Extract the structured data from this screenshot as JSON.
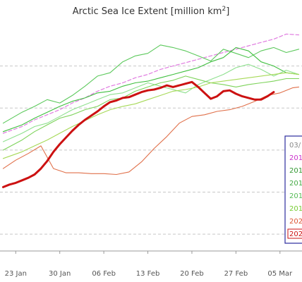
{
  "chart_data": {
    "type": "line",
    "title": "Arctic Sea Ice Extent [million km²]",
    "title_main": "Arctic Sea Ice Extent [million km",
    "title_sup": "2",
    "title_end": "]",
    "xlabel": "",
    "ylabel": "",
    "x_ticks": [
      "23 Jan",
      "30 Jan",
      "06 Feb",
      "13 Feb",
      "20 Feb",
      "27 Feb",
      "05 Mar"
    ],
    "x_tick_days": [
      -1,
      6,
      13,
      20,
      27,
      34,
      41
    ],
    "xlim": [
      -3.5,
      44.5
    ],
    "ylim": [
      12.3,
      15.0
    ],
    "yticks": [
      12.5,
      13.0,
      13.5,
      14.0,
      14.5
    ],
    "grid": true,
    "legend": {
      "position": "right",
      "entries": [
        {
          "label": "03/",
          "color": "#888888"
        },
        {
          "label": "201",
          "color": "#cc33cc"
        },
        {
          "label": "201",
          "color": "#339933"
        },
        {
          "label": "201",
          "color": "#44aa44"
        },
        {
          "label": "201",
          "color": "#55bb55"
        },
        {
          "label": "201",
          "color": "#77cc33"
        },
        {
          "label": "202",
          "color": "#dd5533"
        },
        {
          "label": "202",
          "color": "#cc1111",
          "boxed": true
        }
      ]
    },
    "series": [
      {
        "color": "#e07ce0",
        "dashed": true,
        "width": 1.2,
        "x": [
          -3,
          0,
          2,
          4,
          6,
          8,
          10,
          12,
          14,
          16,
          18,
          20,
          22,
          24,
          26,
          28,
          30,
          32,
          34,
          36,
          38,
          40,
          42,
          44
        ],
        "y": [
          13.7,
          13.78,
          13.86,
          13.92,
          13.98,
          14.06,
          14.12,
          14.2,
          14.26,
          14.3,
          14.36,
          14.4,
          14.46,
          14.5,
          14.54,
          14.58,
          14.62,
          14.66,
          14.7,
          14.74,
          14.78,
          14.82,
          14.88,
          14.87
        ]
      },
      {
        "color": "#5cc95c",
        "dashed": false,
        "width": 1.1,
        "x": [
          -3,
          0,
          2,
          4,
          6,
          8,
          10,
          12,
          14,
          16,
          18,
          20,
          22,
          24,
          26,
          28,
          30,
          32,
          34,
          36,
          38,
          40,
          42,
          44
        ],
        "y": [
          13.82,
          13.95,
          14.02,
          14.1,
          14.06,
          14.15,
          14.26,
          14.38,
          14.42,
          14.55,
          14.62,
          14.65,
          14.75,
          14.72,
          14.68,
          14.62,
          14.56,
          14.7,
          14.65,
          14.6,
          14.68,
          14.72,
          14.66,
          14.7
        ]
      },
      {
        "color": "#3fbf3f",
        "dashed": false,
        "width": 1.1,
        "x": [
          -3,
          0,
          2,
          4,
          6,
          8,
          10,
          12,
          14,
          16,
          18,
          20,
          22,
          24,
          26,
          28,
          30,
          32,
          34,
          36,
          38,
          40,
          42,
          44
        ],
        "y": [
          13.72,
          13.8,
          13.88,
          13.95,
          14.02,
          14.08,
          14.12,
          14.18,
          14.2,
          14.26,
          14.3,
          14.32,
          14.36,
          14.4,
          14.44,
          14.48,
          14.55,
          14.6,
          14.72,
          14.68,
          14.55,
          14.5,
          14.42,
          14.4
        ]
      },
      {
        "color": "#8ee08e",
        "dashed": false,
        "width": 1.1,
        "x": [
          -3,
          0,
          2,
          4,
          6,
          8,
          10,
          12,
          14,
          16,
          18,
          20,
          22,
          24,
          26,
          28,
          30,
          32,
          34,
          36,
          38,
          40,
          42,
          44
        ],
        "y": [
          13.6,
          13.7,
          13.78,
          13.82,
          13.9,
          13.98,
          14.04,
          14.1,
          14.16,
          14.18,
          14.24,
          14.3,
          14.26,
          14.22,
          14.18,
          14.28,
          14.34,
          14.4,
          14.48,
          14.52,
          14.46,
          14.38,
          14.45,
          14.4
        ]
      },
      {
        "color": "#7dd35a",
        "dashed": false,
        "width": 1.1,
        "x": [
          -3,
          0,
          2,
          4,
          6,
          8,
          10,
          12,
          14,
          16,
          18,
          20,
          22,
          24,
          26,
          28,
          30,
          32,
          34,
          36,
          38,
          40,
          42,
          44
        ],
        "y": [
          13.5,
          13.62,
          13.72,
          13.8,
          13.88,
          13.92,
          13.98,
          14.02,
          14.1,
          14.12,
          14.2,
          14.25,
          14.3,
          14.33,
          14.38,
          14.34,
          14.3,
          14.28,
          14.25,
          14.28,
          14.3,
          14.32,
          14.35,
          14.35
        ]
      },
      {
        "color": "#a6d957",
        "dashed": false,
        "width": 1.1,
        "x": [
          -3,
          0,
          2,
          4,
          6,
          8,
          10,
          12,
          14,
          16,
          18,
          20,
          22,
          24,
          26,
          28,
          30,
          32,
          34,
          36,
          38,
          40,
          42,
          44
        ],
        "y": [
          13.4,
          13.48,
          13.55,
          13.62,
          13.7,
          13.78,
          13.85,
          13.92,
          13.98,
          14.02,
          14.05,
          14.1,
          14.15,
          14.2,
          14.22,
          14.25,
          14.3,
          14.32,
          14.34,
          14.36,
          14.38,
          14.4,
          14.42,
          14.4
        ]
      },
      {
        "color": "#e0704a",
        "dashed": false,
        "width": 1.1,
        "x": [
          -3,
          -1,
          1,
          3,
          5,
          7,
          9,
          11,
          13,
          15,
          17,
          19,
          21,
          23,
          25,
          27,
          29,
          31,
          33,
          35,
          37,
          39,
          41,
          43,
          44
        ],
        "y": [
          13.28,
          13.38,
          13.46,
          13.55,
          13.28,
          13.23,
          13.23,
          13.22,
          13.22,
          13.21,
          13.24,
          13.36,
          13.52,
          13.66,
          13.82,
          13.9,
          13.92,
          13.96,
          13.98,
          14.02,
          14.08,
          14.15,
          14.18,
          14.24,
          14.25
        ]
      },
      {
        "color": "#cc1111",
        "dashed": false,
        "width": 3,
        "x": [
          -3,
          -2,
          -1,
          0,
          1,
          2,
          3,
          4,
          5,
          6,
          7,
          8,
          9,
          10,
          11,
          12,
          13,
          14,
          15,
          16,
          17,
          18,
          19,
          20,
          21,
          22,
          23,
          24,
          25,
          26,
          27,
          28,
          29,
          30,
          31,
          32,
          33,
          34,
          35,
          36,
          37,
          38,
          39,
          40
        ],
        "y": [
          13.06,
          13.09,
          13.11,
          13.14,
          13.17,
          13.21,
          13.28,
          13.37,
          13.48,
          13.57,
          13.65,
          13.73,
          13.8,
          13.86,
          13.91,
          13.96,
          14.02,
          14.07,
          14.09,
          14.12,
          14.13,
          14.16,
          14.19,
          14.21,
          14.22,
          14.24,
          14.27,
          14.25,
          14.27,
          14.29,
          14.31,
          14.25,
          14.18,
          14.11,
          14.14,
          14.2,
          14.21,
          14.17,
          14.14,
          14.12,
          14.1,
          14.1,
          14.14,
          14.19
        ]
      }
    ]
  }
}
